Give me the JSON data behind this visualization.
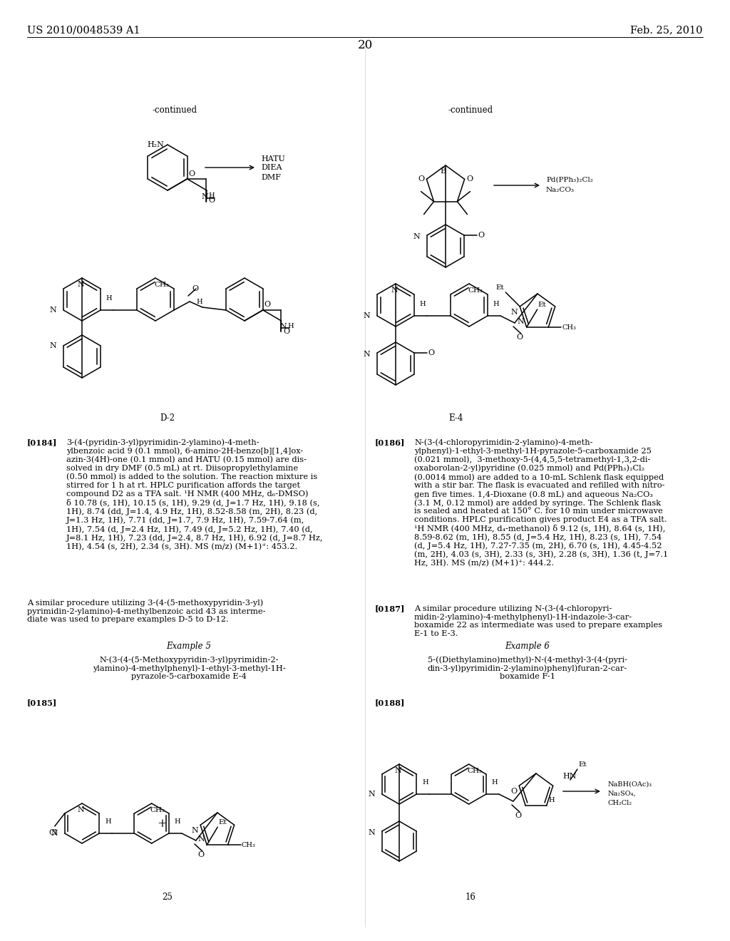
{
  "page_number": "20",
  "header_left": "US 2010/0048539 A1",
  "header_right": "Feb. 25, 2010",
  "background_color": "#ffffff",
  "text_color": "#000000",
  "font_size_header": 10.5,
  "font_size_body": 8.2,
  "font_size_bold": 8.2,
  "font_size_example": 8.5
}
